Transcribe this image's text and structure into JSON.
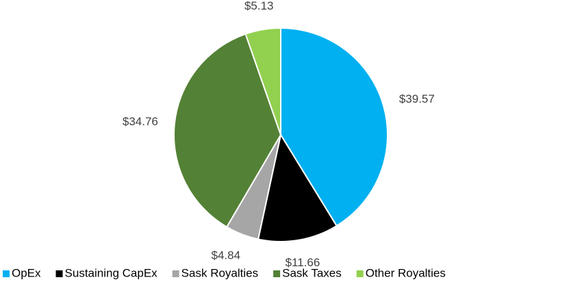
{
  "chart_data": {
    "type": "pie",
    "categories": [
      "OpEx",
      "Sustaining CapEx",
      "Sask Royalties",
      "Sask Taxes",
      "Other Royalties"
    ],
    "values": [
      39.57,
      11.66,
      4.84,
      34.76,
      5.13
    ],
    "value_labels": [
      "$39.57",
      "$11.66",
      "$4.84",
      "$34.76",
      "$5.13"
    ],
    "colors": [
      "#00b0f0",
      "#000000",
      "#a6a6a6",
      "#538135",
      "#92d050"
    ],
    "legend": "bottom"
  }
}
